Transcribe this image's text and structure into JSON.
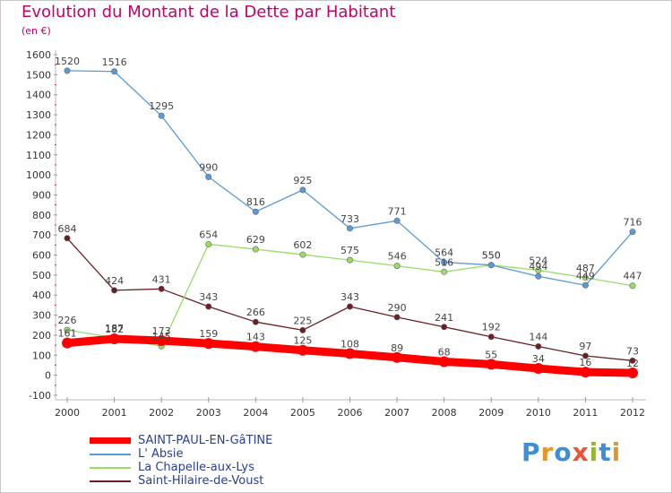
{
  "title": "Evolution du Montant de la Dette par Habitant",
  "subtitle": "(en €)",
  "logo": {
    "text": "Proxiti",
    "colors": [
      "#3c8fd6",
      "#e89623",
      "#3c8fd6",
      "#e8563a",
      "#93b830",
      "#3c8fd6",
      "#e89623"
    ]
  },
  "chart_data": {
    "type": "line",
    "title": "Evolution du Montant de la Dette par Habitant",
    "ylabel": "(en €)",
    "xlabel": "",
    "x": [
      "2000",
      "2001",
      "2002",
      "2003",
      "2004",
      "2005",
      "2006",
      "2007",
      "2008",
      "2009",
      "2010",
      "2011",
      "2012"
    ],
    "ylim": [
      -100,
      1600
    ],
    "yticks": [
      -100,
      0,
      100,
      200,
      300,
      400,
      500,
      600,
      700,
      800,
      900,
      1000,
      1100,
      1200,
      1300,
      1400,
      1500,
      1600
    ],
    "grid": false,
    "legend_position": "bottom-left",
    "series": [
      {
        "name": "SAINT-PAUL-EN-GâTINE",
        "color": "#ff0000",
        "values": [
          161,
          182,
          173,
          159,
          143,
          125,
          108,
          89,
          68,
          55,
          34,
          16,
          12
        ],
        "labels": [
          "161",
          "182",
          "173",
          "159",
          "143",
          "125",
          "108",
          "89",
          "68",
          "55",
          "34",
          "16",
          "12"
        ]
      },
      {
        "name": "L' Absie",
        "color": "#5b9bd5",
        "values": [
          1520,
          1516,
          1295,
          990,
          816,
          925,
          733,
          771,
          564,
          550,
          494,
          449,
          716
        ],
        "labels": [
          "1520",
          "1516",
          "1295",
          "990",
          "816",
          "925",
          "733",
          "771",
          "564",
          "550",
          "494",
          "449",
          "716"
        ]
      },
      {
        "name": "La Chapelle-aux-Lys",
        "color": "#99dd66",
        "values": [
          226,
          187,
          145,
          654,
          629,
          602,
          575,
          546,
          516,
          550,
          524,
          487,
          447
        ],
        "labels": [
          "226",
          "187",
          "145",
          "654",
          "629",
          "602",
          "575",
          "546",
          "516",
          "550",
          "524",
          "487",
          "447"
        ]
      },
      {
        "name": "Saint-Hilaire-de-Voust",
        "color": "#6b1f24",
        "values": [
          684,
          424,
          431,
          343,
          266,
          225,
          343,
          290,
          241,
          192,
          144,
          97,
          73
        ],
        "labels": [
          "684",
          "424",
          "431",
          "343",
          "266",
          "225",
          "343",
          "290",
          "241",
          "192",
          "144",
          "97",
          "73"
        ]
      }
    ]
  }
}
